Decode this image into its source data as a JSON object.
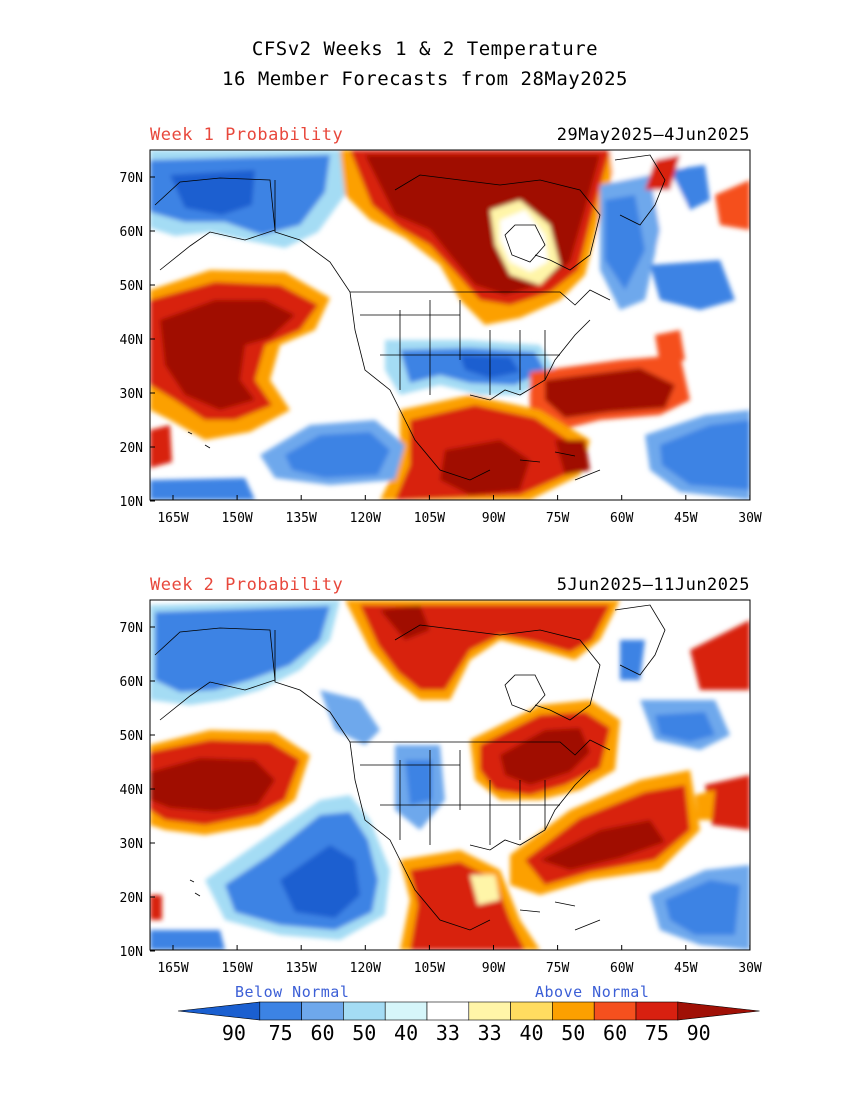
{
  "title": {
    "line1": "CFSv2 Weeks 1 & 2 Temperature",
    "line2": "16 Member Forecasts from 28May2025"
  },
  "panels": [
    {
      "label": "Week 1 Probability",
      "date": "29May2025—4Jun2025"
    },
    {
      "label": "Week 2 Probability",
      "date": "5Jun2025—11Jun2025"
    }
  ],
  "axes": {
    "lat_labels": [
      "70N",
      "60N",
      "50N",
      "40N",
      "30N",
      "20N",
      "10N"
    ],
    "lon_labels": [
      "165W",
      "150W",
      "135W",
      "120W",
      "105W",
      "90W",
      "75W",
      "60W",
      "45W",
      "30W"
    ]
  },
  "legend": {
    "below": "Below Normal",
    "above": "Above Normal",
    "labels": [
      "90",
      "75",
      "60",
      "50",
      "40",
      "33",
      "33",
      "40",
      "50",
      "60",
      "75",
      "90"
    ],
    "colors": [
      "#1a5fd0",
      "#3c83e4",
      "#6ea8ec",
      "#a4dcf4",
      "#d6f6fa",
      "#ffffff",
      "#fff5a8",
      "#ffdc60",
      "#fca000",
      "#f5501e",
      "#d82010",
      "#a01006"
    ]
  },
  "colors": {
    "label_red": "#e8483c",
    "legend_blue": "#3c5fd6"
  }
}
